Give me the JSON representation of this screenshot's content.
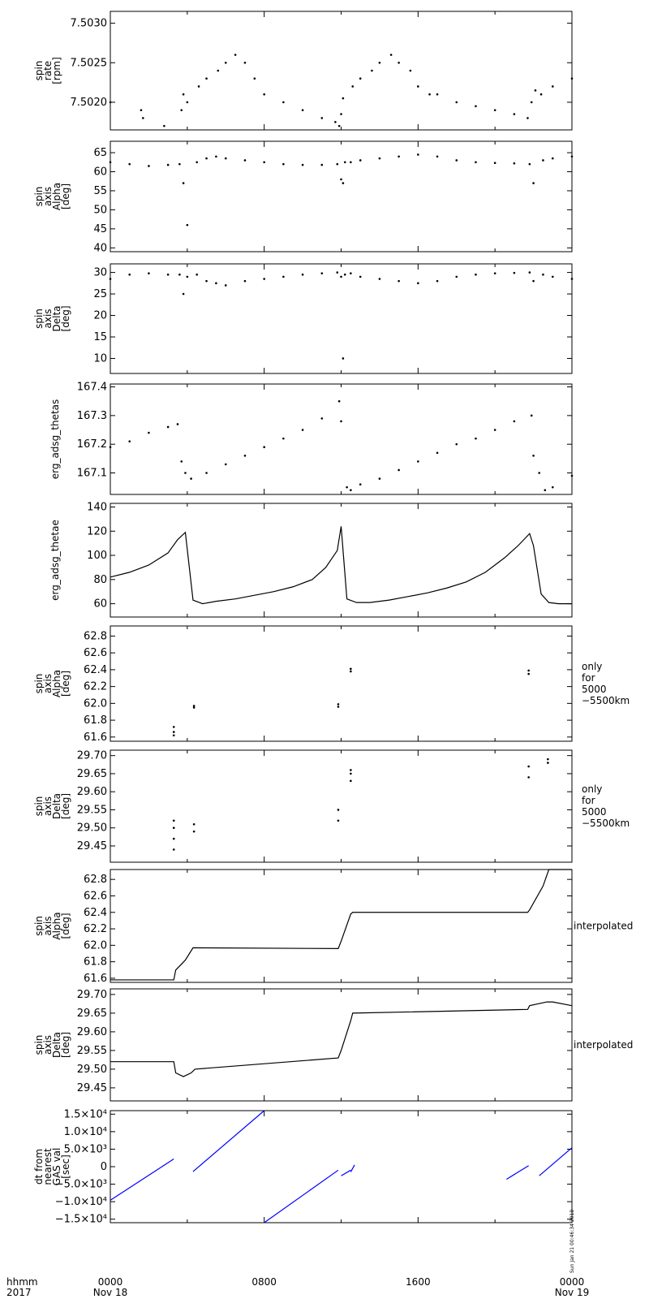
{
  "chart_data": [
    {
      "type": "scatter",
      "ylabel": [
        "spin",
        "rate",
        "[rpm]"
      ],
      "ylim": [
        7.50165,
        7.50315
      ],
      "yticks": [
        7.502,
        7.5025,
        7.503
      ],
      "ytick_labels": [
        "7.5020",
        "7.5025",
        "7.5030"
      ],
      "side_label": [],
      "color": "#000000",
      "series": [
        {
          "x": [
            0.0,
            1.6,
            1.7,
            2.8,
            3.7,
            3.8,
            4.0,
            4.6,
            5.0,
            5.6,
            6.0,
            6.5,
            7.0,
            7.5,
            8.0,
            9.0,
            10.0,
            11.0,
            11.7,
            11.9,
            12.0,
            12.1,
            12.6,
            13.0,
            13.6,
            14.0,
            14.6,
            15.0,
            15.6,
            16.0,
            16.6,
            17.0,
            18.0,
            19.0,
            20.0,
            21.0,
            21.7,
            21.9,
            22.1,
            22.4,
            23.0,
            24.0
          ],
          "y": [
            7.502,
            7.5019,
            7.5018,
            7.5017,
            7.5019,
            7.5021,
            7.502,
            7.5022,
            7.5023,
            7.5024,
            7.5025,
            7.5026,
            7.5025,
            7.5023,
            7.5021,
            7.502,
            7.5019,
            7.5018,
            7.50175,
            7.5017,
            7.50185,
            7.50205,
            7.5022,
            7.5023,
            7.5024,
            7.5025,
            7.5026,
            7.5025,
            7.5024,
            7.5022,
            7.5021,
            7.5021,
            7.502,
            7.50195,
            7.5019,
            7.50185,
            7.5018,
            7.502,
            7.50215,
            7.5021,
            7.5022,
            7.5023
          ]
        }
      ]
    },
    {
      "type": "scatter",
      "ylabel": [
        "spin",
        "axis",
        "Alpha",
        "[deg]"
      ],
      "ylim": [
        39,
        68
      ],
      "yticks": [
        40,
        45,
        50,
        55,
        60,
        65
      ],
      "ytick_labels": [
        "40",
        "45",
        "50",
        "55",
        "60",
        "65"
      ],
      "side_label": [],
      "color": "#000000",
      "series": [
        {
          "x": [
            0.0,
            1.0,
            2.0,
            3.0,
            3.6,
            3.8,
            4.0,
            4.5,
            5.0,
            5.5,
            6.0,
            7.0,
            8.0,
            9.0,
            10.0,
            11.0,
            11.8,
            12.0,
            12.1,
            12.2,
            12.5,
            13.0,
            14.0,
            15.0,
            16.0,
            17.0,
            18.0,
            19.0,
            20.0,
            21.0,
            21.8,
            22.0,
            22.5,
            23.0,
            24.0
          ],
          "y": [
            62.5,
            62.0,
            61.5,
            61.8,
            62.0,
            57.0,
            46.0,
            62.5,
            63.5,
            64.0,
            63.5,
            63.0,
            62.5,
            62.0,
            61.8,
            61.8,
            62.0,
            58.0,
            57.0,
            62.5,
            62.5,
            63.0,
            63.5,
            64.0,
            64.5,
            64.0,
            63.0,
            62.5,
            62.3,
            62.2,
            62.0,
            57.0,
            63.0,
            63.5,
            64.0
          ]
        }
      ]
    },
    {
      "type": "scatter",
      "ylabel": [
        "spin",
        "axis",
        "Delta",
        "[deg]"
      ],
      "ylim": [
        6.5,
        32
      ],
      "yticks": [
        10,
        15,
        20,
        25,
        30
      ],
      "ytick_labels": [
        "10",
        "15",
        "20",
        "25",
        "30"
      ],
      "side_label": [],
      "color": "#000000",
      "series": [
        {
          "x": [
            0.0,
            1.0,
            2.0,
            3.0,
            3.6,
            3.8,
            4.0,
            4.5,
            5.0,
            5.5,
            6.0,
            7.0,
            8.0,
            9.0,
            10.0,
            11.0,
            11.8,
            12.0,
            12.1,
            12.2,
            12.5,
            13.0,
            14.0,
            15.0,
            16.0,
            17.0,
            18.0,
            19.0,
            20.0,
            21.0,
            21.8,
            22.0,
            22.5,
            23.0,
            24.0
          ],
          "y": [
            28.5,
            29.5,
            29.8,
            29.5,
            29.5,
            25.0,
            29.0,
            29.5,
            28.0,
            27.5,
            27.0,
            28.0,
            28.5,
            29.0,
            29.5,
            29.8,
            30.0,
            29.0,
            10.0,
            29.5,
            29.8,
            29.0,
            28.5,
            28.0,
            27.5,
            28.0,
            29.0,
            29.5,
            29.8,
            29.9,
            30.0,
            28.0,
            29.5,
            29.0,
            28.5
          ]
        }
      ]
    },
    {
      "type": "scatter",
      "ylabel": [
        "erg_adsg_thetas"
      ],
      "ylim": [
        167.025,
        167.41
      ],
      "yticks": [
        167.1,
        167.2,
        167.3,
        167.4
      ],
      "ytick_labels": [
        "167.1",
        "167.2",
        "167.3",
        "167.4"
      ],
      "side_label": [],
      "color": "#000000",
      "series": [
        {
          "x": [
            0.0,
            1.0,
            2.0,
            3.0,
            3.5,
            3.7,
            3.9,
            4.2,
            5.0,
            6.0,
            7.0,
            8.0,
            9.0,
            10.0,
            11.0,
            11.9,
            12.0,
            12.3,
            12.5,
            13.0,
            14.0,
            15.0,
            16.0,
            17.0,
            18.0,
            19.0,
            20.0,
            21.0,
            21.9,
            22.0,
            22.3,
            22.6,
            23.0,
            24.0
          ],
          "y": [
            167.19,
            167.21,
            167.24,
            167.26,
            167.27,
            167.14,
            167.1,
            167.08,
            167.1,
            167.13,
            167.16,
            167.19,
            167.22,
            167.25,
            167.29,
            167.35,
            167.28,
            167.05,
            167.04,
            167.06,
            167.08,
            167.11,
            167.14,
            167.17,
            167.2,
            167.22,
            167.25,
            167.28,
            167.3,
            167.16,
            167.1,
            167.04,
            167.05,
            167.09
          ]
        }
      ]
    },
    {
      "type": "line",
      "ylabel": [
        "erg_adsg_thetae"
      ],
      "ylim": [
        49,
        143
      ],
      "yticks": [
        60,
        80,
        100,
        120,
        140
      ],
      "ytick_labels": [
        "60",
        "80",
        "100",
        "120",
        "140"
      ],
      "side_label": [],
      "color": "#000000",
      "series": [
        {
          "x": [
            0.0,
            1.0,
            2.0,
            3.0,
            3.5,
            3.9,
            4.3,
            4.8,
            5.5,
            6.5,
            7.5,
            8.5,
            9.5,
            10.5,
            11.2,
            11.8,
            12.0,
            12.3,
            12.8,
            13.5,
            14.5,
            15.5,
            16.5,
            17.5,
            18.5,
            19.5,
            20.5,
            21.2,
            21.8,
            22.0,
            22.4,
            22.8,
            23.3,
            24.0
          ],
          "y": [
            82,
            86,
            92,
            102,
            113,
            119,
            63,
            60,
            62,
            64,
            67,
            70,
            74,
            80,
            90,
            104,
            124,
            64,
            61,
            61,
            63,
            66,
            69,
            73,
            78,
            86,
            98,
            108,
            118,
            108,
            68,
            61,
            60,
            60
          ]
        }
      ]
    },
    {
      "type": "scatter",
      "ylabel": [
        "spin",
        "axis",
        "Alpha",
        "[deg]"
      ],
      "ylim": [
        61.55,
        62.92
      ],
      "yticks": [
        61.6,
        61.8,
        62.0,
        62.2,
        62.4,
        62.6,
        62.8
      ],
      "ytick_labels": [
        "61.6",
        "61.8",
        "62.0",
        "62.2",
        "62.4",
        "62.6",
        "62.8"
      ],
      "side_label": [
        "only",
        "for",
        "5000",
        "−5500km"
      ],
      "color": "#000000",
      "series": [
        {
          "x": [
            3.3,
            3.3,
            3.3,
            4.35,
            4.35,
            11.85,
            11.85,
            12.5,
            12.5,
            21.75,
            21.75
          ],
          "y": [
            61.62,
            61.66,
            61.72,
            61.95,
            61.97,
            61.96,
            61.99,
            62.38,
            62.41,
            62.35,
            62.39
          ]
        }
      ]
    },
    {
      "type": "scatter",
      "ylabel": [
        "spin",
        "axis",
        "Delta",
        "[deg]"
      ],
      "ylim": [
        29.405,
        29.715
      ],
      "yticks": [
        29.45,
        29.5,
        29.55,
        29.6,
        29.65,
        29.7
      ],
      "ytick_labels": [
        "29.45",
        "29.50",
        "29.55",
        "29.60",
        "29.65",
        "29.70"
      ],
      "side_label": [
        "only",
        "for",
        "5000",
        "−5500km"
      ],
      "color": "#000000",
      "series": [
        {
          "x": [
            3.3,
            3.3,
            3.3,
            3.3,
            4.35,
            4.35,
            11.85,
            11.85,
            12.5,
            12.5,
            12.5,
            21.75,
            21.75,
            22.75,
            22.75
          ],
          "y": [
            29.44,
            29.47,
            29.5,
            29.52,
            29.49,
            29.51,
            29.52,
            29.55,
            29.63,
            29.65,
            29.66,
            29.64,
            29.67,
            29.68,
            29.69
          ]
        }
      ]
    },
    {
      "type": "line",
      "ylabel": [
        "spin",
        "axis",
        "Alpha",
        "[deg]"
      ],
      "ylim": [
        61.55,
        62.92
      ],
      "yticks": [
        61.6,
        61.8,
        62.0,
        62.2,
        62.4,
        62.6,
        62.8
      ],
      "ytick_labels": [
        "61.6",
        "61.8",
        "62.0",
        "62.2",
        "62.4",
        "62.6",
        "62.8"
      ],
      "side_label": [
        "interpolated"
      ],
      "color": "#000000",
      "series": [
        {
          "x": [
            0.0,
            3.3,
            3.4,
            3.9,
            4.3,
            11.85,
            12.0,
            12.5,
            12.6,
            21.7,
            21.8,
            22.5,
            22.8,
            24.0
          ],
          "y": [
            61.58,
            61.58,
            61.7,
            61.82,
            61.97,
            61.96,
            62.05,
            62.38,
            62.4,
            62.4,
            62.43,
            62.72,
            62.92,
            62.92
          ]
        }
      ]
    },
    {
      "type": "line",
      "ylabel": [
        "spin",
        "axis",
        "Delta",
        "[deg]"
      ],
      "ylim": [
        29.415,
        29.715
      ],
      "yticks": [
        29.45,
        29.5,
        29.55,
        29.6,
        29.65,
        29.7
      ],
      "ytick_labels": [
        "29.45",
        "29.50",
        "29.55",
        "29.60",
        "29.65",
        "29.70"
      ],
      "side_label": [
        "interpolated"
      ],
      "color": "#000000",
      "series": [
        {
          "x": [
            0.0,
            3.3,
            3.4,
            3.8,
            4.2,
            4.4,
            11.85,
            12.0,
            12.5,
            12.6,
            21.7,
            21.8,
            22.7,
            23.0,
            24.0
          ],
          "y": [
            29.52,
            29.52,
            29.49,
            29.48,
            29.49,
            29.5,
            29.53,
            29.55,
            29.63,
            29.65,
            29.66,
            29.67,
            29.68,
            29.68,
            29.67
          ]
        }
      ]
    },
    {
      "type": "line",
      "ylabel": [
        "dt from",
        "nearest",
        "GAS val",
        "[sec]"
      ],
      "ylim": [
        -16000,
        16000
      ],
      "yticks": [
        -15000,
        -10000,
        -5000,
        0,
        5000,
        10000,
        15000
      ],
      "ytick_labels": [
        "−1.5×10⁴",
        "−1.0×10⁴",
        "−5.0×10³",
        "0",
        "5.0×10³",
        "1.0×10⁴",
        "1.5×10⁴"
      ],
      "side_label": [],
      "color": "#0000ff",
      "series": [
        {
          "x": [
            0.0,
            3.3
          ],
          "y": [
            -9600,
            2200
          ]
        },
        {
          "x": [
            4.3,
            8.0
          ],
          "y": [
            -1400,
            16000
          ]
        },
        {
          "x": [
            8.0,
            11.85
          ],
          "y": [
            -16000,
            -1000
          ]
        },
        {
          "x": [
            12.0,
            12.5
          ],
          "y": [
            -2600,
            -1000
          ]
        },
        {
          "x": [
            12.5,
            12.7
          ],
          "y": [
            -1500,
            500
          ]
        },
        {
          "x": [
            20.6,
            21.75
          ],
          "y": [
            -3600,
            300
          ]
        },
        {
          "x": [
            22.3,
            24.0
          ],
          "y": [
            -2600,
            5400
          ]
        }
      ]
    }
  ],
  "x_axis": {
    "range_hours": [
      0,
      24
    ],
    "corner_labels": [
      "hhmm",
      "2017"
    ],
    "ticks": [
      {
        "hour": 0,
        "time": "0000",
        "date": "Nov 18"
      },
      {
        "hour": 8,
        "time": "0800",
        "date": ""
      },
      {
        "hour": 16,
        "time": "1600",
        "date": ""
      },
      {
        "hour": 24,
        "time": "0000",
        "date": "Nov 19"
      }
    ]
  },
  "timestamp": "Sun Jan 21 00:46:34 2018"
}
